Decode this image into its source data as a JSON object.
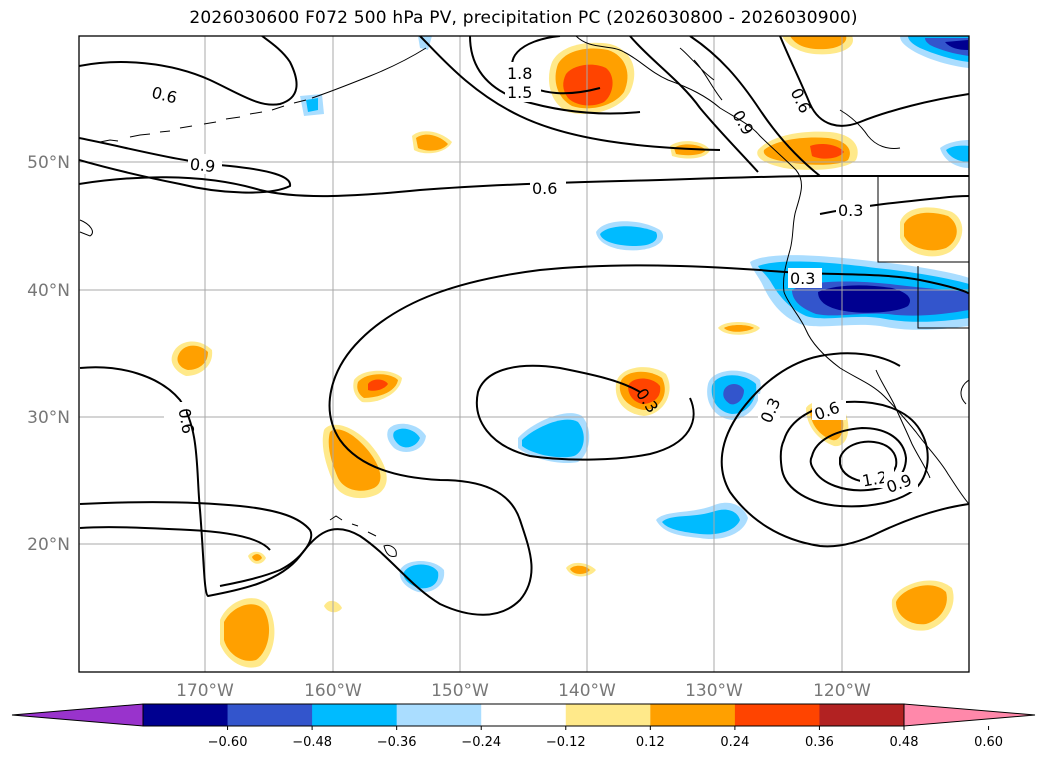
{
  "title": "2026030600 F072 500 hPa PV, precipitation PC (2026030800 - 2026030900)",
  "longitude_ticks": [
    "170°W",
    "160°W",
    "150°W",
    "140°W",
    "130°W",
    "120°W"
  ],
  "latitude_ticks": [
    "50°N",
    "40°N",
    "30°N",
    "20°N"
  ],
  "colorbar": {
    "tick_labels": [
      "−0.60",
      "−0.48",
      "−0.36",
      "−0.24",
      "−0.12",
      "0.12",
      "0.24",
      "0.36",
      "0.48",
      "0.60"
    ],
    "colors": [
      "#9933cc",
      "#000090",
      "#3355cc",
      "#00bbff",
      "#aaddff",
      "#ffffff",
      "#ffe98a",
      "#ffa000",
      "#ff4400",
      "#b22222",
      "#ff88aa"
    ]
  },
  "contour_labels": [
    "0.6",
    "0.9",
    "1.8",
    "1.5",
    "0.6",
    "0.9",
    "0.6",
    "0.3",
    "0.3",
    "0.6",
    "0.3",
    "0.3",
    "0.6",
    "1.2",
    "0.9"
  ]
}
